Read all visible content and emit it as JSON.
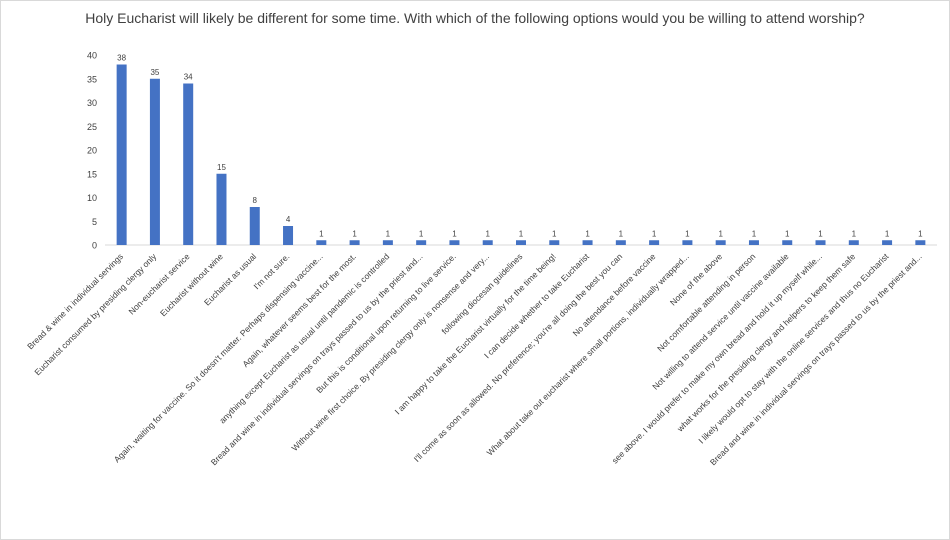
{
  "chart_data": {
    "type": "bar",
    "title": "Holy Eucharist will likely be different for some time. With which of the following options would you be willing to attend worship?",
    "xlabel": "",
    "ylabel": "",
    "ylim": [
      0,
      40
    ],
    "yticks": [
      0,
      5,
      10,
      15,
      20,
      25,
      30,
      35,
      40
    ],
    "grid": false,
    "color": "#4472c4",
    "categories": [
      "Bread & wine in individual servings",
      "Eucharist consumed by presiding clergy only",
      "Non-eucharist service",
      "Eucharist without wine",
      "Eucharist as usual",
      "I'm not sure.",
      "Again, waiting for vaccine. So it doesn't matter. Perhaps dispensing vaccine...",
      "Again, whatever seems best for the most.",
      "anything except Eucharist as usual until pandemic is controlled",
      "Bread and wine in individual servings on trays passed to us by the priest and...",
      "But this is conditional upon returning to live service.",
      "Without wine first choice. By presiding clergy only is nonsense and very...",
      "following diocesan guidelines",
      "I am happy to take the Eucharist virtually for the time being!",
      "I can decide whether to take Eucharist",
      "I'll come as soon as allowed. No preference; you're all doing the best you can",
      "No attendance before vaccine",
      "What about take out eucharist where small portions, individually wrapped...",
      "None of the above",
      "Not comfortable attending in person",
      "Not willing to attend service until vaccine available",
      "see above. I would prefer to make my own bread and hold it up myself while...",
      "what works for the presiding clergy and helpers to keep them safe",
      "I likely would opt to stay with the online services and thus no Eucharist",
      "Bread and wine in individual servings on trays passed to us by the priest and..."
    ],
    "values": [
      38,
      35,
      34,
      15,
      8,
      4,
      1,
      1,
      1,
      1,
      1,
      1,
      1,
      1,
      1,
      1,
      1,
      1,
      1,
      1,
      1,
      1,
      1,
      1,
      1
    ]
  }
}
